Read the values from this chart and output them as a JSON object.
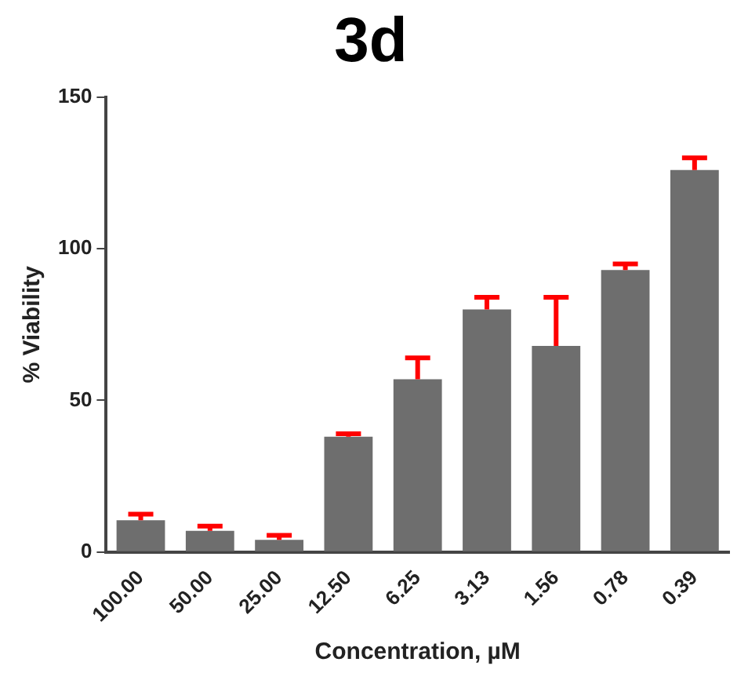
{
  "chart_data": {
    "type": "bar",
    "title": "3d",
    "xlabel": "Concentration, µM",
    "ylabel": "% Viability",
    "categories": [
      "100.00",
      "50.00",
      "25.00",
      "12.50",
      "6.25",
      "3.13",
      "1.56",
      "0.78",
      "0.39"
    ],
    "series": [
      {
        "color": "#6e6e6e",
        "values": [
          10.5,
          7,
          4,
          38,
          57,
          80,
          68,
          93,
          126
        ],
        "errors": [
          [
            10.5,
            12.5
          ],
          [
            7,
            8.5
          ],
          [
            4,
            5.5
          ],
          [
            38,
            39
          ],
          [
            57,
            64
          ],
          [
            80,
            84
          ],
          [
            68,
            84
          ],
          [
            93,
            95
          ],
          [
            126,
            130
          ]
        ]
      }
    ],
    "ylim": [
      0,
      150
    ],
    "yticks": [
      0,
      50,
      100,
      150
    ],
    "grid": false,
    "legend": false
  }
}
